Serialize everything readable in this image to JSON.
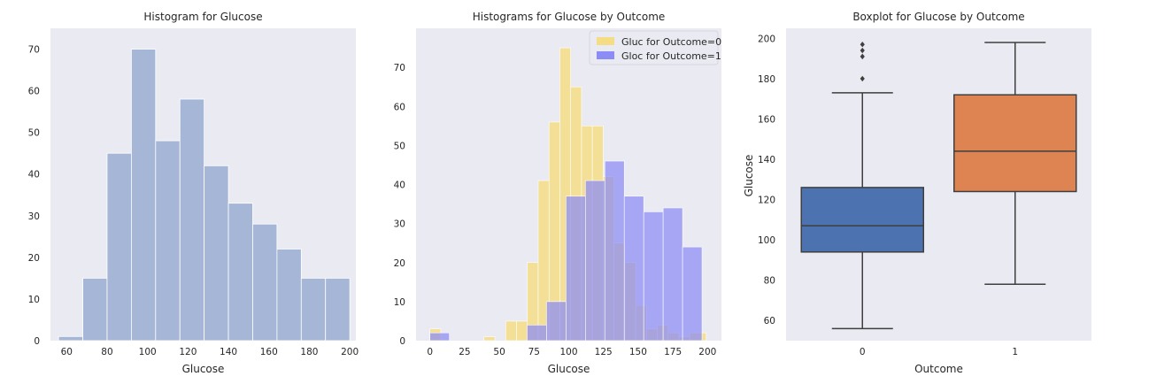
{
  "figure": {
    "background": "#ffffff",
    "axes_background": "#eaeaf2"
  },
  "chart_data": [
    {
      "type": "histogram",
      "title": "Histogram for Glucose",
      "xlabel": "Glucose",
      "ylabel": "",
      "xlim": [
        52,
        203
      ],
      "ylim": [
        0,
        75
      ],
      "xticks": [
        60,
        80,
        100,
        120,
        140,
        160,
        180,
        200
      ],
      "yticks": [
        0,
        10,
        20,
        30,
        40,
        50,
        60,
        70
      ],
      "grid": false,
      "bins": [
        {
          "x0": 56,
          "x1": 68,
          "value": 1
        },
        {
          "x0": 68,
          "x1": 80,
          "value": 15
        },
        {
          "x0": 80,
          "x1": 92,
          "value": 45
        },
        {
          "x0": 92,
          "x1": 104,
          "value": 70
        },
        {
          "x0": 104,
          "x1": 116,
          "value": 48
        },
        {
          "x0": 116,
          "x1": 128,
          "value": 58
        },
        {
          "x0": 128,
          "x1": 140,
          "value": 42
        },
        {
          "x0": 140,
          "x1": 152,
          "value": 33
        },
        {
          "x0": 152,
          "x1": 164,
          "value": 28
        },
        {
          "x0": 164,
          "x1": 176,
          "value": 22
        },
        {
          "x0": 176,
          "x1": 188,
          "value": 15
        },
        {
          "x0": 188,
          "x1": 200,
          "value": 15
        }
      ],
      "color": "#a6b6d6"
    },
    {
      "type": "histogram",
      "title": "Histograms for Glucose by Outcome",
      "xlabel": "Glucose",
      "ylabel": "",
      "xlim": [
        -10,
        210
      ],
      "ylim": [
        0,
        80
      ],
      "xticks": [
        0,
        25,
        50,
        75,
        100,
        125,
        150,
        175,
        200
      ],
      "yticks": [
        0,
        10,
        20,
        30,
        40,
        50,
        60,
        70
      ],
      "grid": false,
      "legend_position": "top-right",
      "series": [
        {
          "name": "Gluc for Outcome=0",
          "color": "#f5dd86",
          "bins": [
            {
              "x0": 0,
              "x1": 7.8,
              "value": 3
            },
            {
              "x0": 7.8,
              "x1": 15.6,
              "value": 0
            },
            {
              "x0": 15.6,
              "x1": 23.4,
              "value": 0
            },
            {
              "x0": 23.4,
              "x1": 31.2,
              "value": 0
            },
            {
              "x0": 31.2,
              "x1": 39,
              "value": 0
            },
            {
              "x0": 39,
              "x1": 46.8,
              "value": 1
            },
            {
              "x0": 46.8,
              "x1": 54.6,
              "value": 0
            },
            {
              "x0": 54.6,
              "x1": 62.4,
              "value": 5
            },
            {
              "x0": 62.4,
              "x1": 70.2,
              "value": 5
            },
            {
              "x0": 70.2,
              "x1": 78,
              "value": 20
            },
            {
              "x0": 78,
              "x1": 85.8,
              "value": 41
            },
            {
              "x0": 85.8,
              "x1": 93.6,
              "value": 56
            },
            {
              "x0": 93.6,
              "x1": 101.4,
              "value": 75
            },
            {
              "x0": 101.4,
              "x1": 109.2,
              "value": 65
            },
            {
              "x0": 109.2,
              "x1": 117,
              "value": 55
            },
            {
              "x0": 117,
              "x1": 124.8,
              "value": 55
            },
            {
              "x0": 124.8,
              "x1": 132.6,
              "value": 42
            },
            {
              "x0": 132.6,
              "x1": 140.4,
              "value": 25
            },
            {
              "x0": 140.4,
              "x1": 148.2,
              "value": 20
            },
            {
              "x0": 148.2,
              "x1": 156,
              "value": 9
            },
            {
              "x0": 156,
              "x1": 163.8,
              "value": 3
            },
            {
              "x0": 163.8,
              "x1": 171.6,
              "value": 4
            },
            {
              "x0": 171.6,
              "x1": 179.4,
              "value": 2
            },
            {
              "x0": 179.4,
              "x1": 187.2,
              "value": 1
            },
            {
              "x0": 187.2,
              "x1": 199,
              "value": 2
            }
          ]
        },
        {
          "name": "Gloc for Outcome=1",
          "color": "#8c8cf5",
          "bins": [
            {
              "x0": 0,
              "x1": 14,
              "value": 2
            },
            {
              "x0": 14,
              "x1": 28,
              "value": 0
            },
            {
              "x0": 28,
              "x1": 42,
              "value": 0
            },
            {
              "x0": 42,
              "x1": 56,
              "value": 0
            },
            {
              "x0": 56,
              "x1": 70,
              "value": 0
            },
            {
              "x0": 70,
              "x1": 84,
              "value": 4
            },
            {
              "x0": 84,
              "x1": 98,
              "value": 10
            },
            {
              "x0": 98,
              "x1": 112,
              "value": 37
            },
            {
              "x0": 112,
              "x1": 126,
              "value": 41
            },
            {
              "x0": 126,
              "x1": 140,
              "value": 46
            },
            {
              "x0": 140,
              "x1": 154,
              "value": 37
            },
            {
              "x0": 154,
              "x1": 168,
              "value": 33
            },
            {
              "x0": 168,
              "x1": 182,
              "value": 34
            },
            {
              "x0": 182,
              "x1": 196,
              "value": 24
            }
          ]
        }
      ]
    },
    {
      "type": "boxplot",
      "title": "Boxplot for Glucose by Outcome",
      "xlabel": "Outcome",
      "ylabel": "Glucose",
      "ylim": [
        50,
        205
      ],
      "yticks": [
        60,
        80,
        100,
        120,
        140,
        160,
        180,
        200
      ],
      "grid": false,
      "categories": [
        "0",
        "1"
      ],
      "boxes": [
        {
          "category": "0",
          "whislo": 56,
          "q1": 94,
          "median": 107,
          "q3": 126,
          "whishi": 173,
          "fliers": [
            180,
            191,
            194,
            197
          ],
          "color": "#4c72b0"
        },
        {
          "category": "1",
          "whislo": 78,
          "q1": 124,
          "median": 144,
          "q3": 172,
          "whishi": 198,
          "fliers": [],
          "color": "#dd8452"
        }
      ]
    }
  ]
}
